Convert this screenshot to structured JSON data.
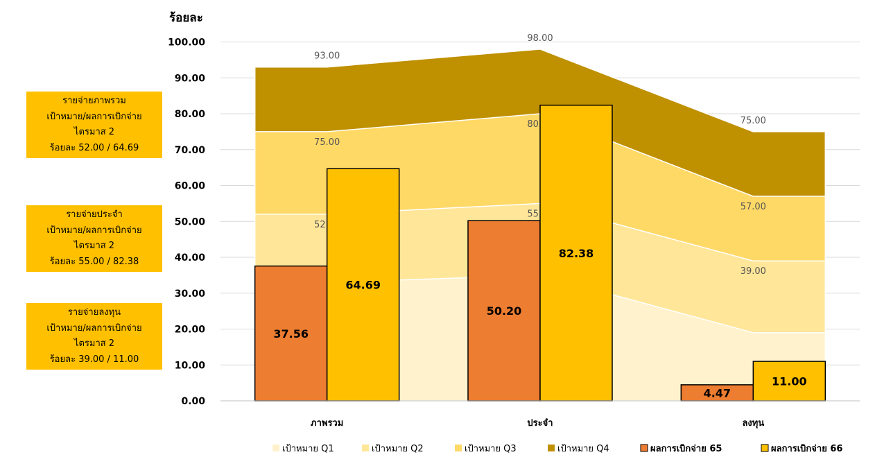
{
  "side_boxes": [
    {
      "line1": "รายจ่ายภาพรวม",
      "line2": "เป้าหมาย/ผลการเบิกจ่าย",
      "line3": "ไตรมาส 2",
      "line4": "ร้อยละ 52.00 / 64.69"
    },
    {
      "line1": "รายจ่ายประจำ",
      "line2": "เป้าหมาย/ผลการเบิกจ่าย",
      "line3": "ไตรมาส 2",
      "line4": "ร้อยละ 55.00 / 82.38"
    },
    {
      "line1": "รายจ่ายลงทุน",
      "line2": "เป้าหมาย/ผลการเบิกจ่าย",
      "line3": "ไตรมาส 2",
      "line4": "ร้อยละ 39.00 / 11.00"
    }
  ],
  "chart_data": {
    "type": "bar",
    "ylabel": "ร้อยละ",
    "ylim": [
      0,
      100
    ],
    "yticks": [
      "0.00",
      "10.00",
      "20.00",
      "30.00",
      "40.00",
      "50.00",
      "60.00",
      "70.00",
      "80.00",
      "90.00",
      "100.00"
    ],
    "grid": true,
    "legend_position": "bottom",
    "categories": [
      "ภาพรวม",
      "ประจำ",
      "ลงทุน"
    ],
    "area_series": [
      {
        "name": "เป้าหมาย Q1",
        "values": [
          33,
          35,
          19
        ],
        "color": "#fff2cc",
        "labels": [
          "",
          "",
          ""
        ]
      },
      {
        "name": "เป้าหมาย Q2",
        "values": [
          52,
          55,
          39
        ],
        "color": "#ffe699",
        "labels": [
          "52.00",
          "55.00",
          "39.00"
        ]
      },
      {
        "name": "เป้าหมาย Q3",
        "values": [
          75,
          80,
          57
        ],
        "color": "#ffd966",
        "labels": [
          "75.00",
          "80.00",
          "57.00"
        ]
      },
      {
        "name": "เป้าหมาย Q4",
        "values": [
          93,
          98,
          75
        ],
        "color": "#bf9000",
        "labels": [
          "93.00",
          "98.00",
          "75.00"
        ]
      }
    ],
    "bar_series": [
      {
        "name": "ผลการเบิกจ่าย 65",
        "values": [
          37.56,
          50.2,
          4.47
        ],
        "color": "#ed7d31",
        "labels": [
          "37.56",
          "50.20",
          "4.47"
        ]
      },
      {
        "name": "ผลการเบิกจ่าย 66",
        "values": [
          64.69,
          82.38,
          11.0
        ],
        "color": "#ffc000",
        "labels": [
          "64.69",
          "82.38",
          "11.00"
        ]
      }
    ]
  }
}
